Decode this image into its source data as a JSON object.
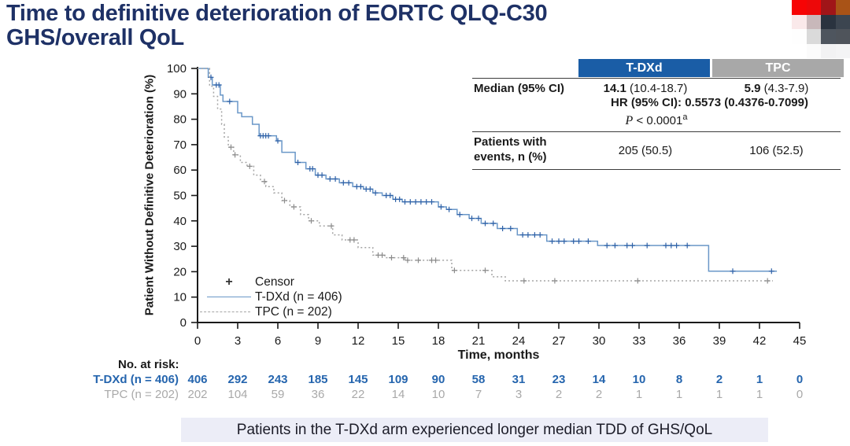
{
  "header": {
    "title": "Time to definitive deterioration of EORTC QLQ-C30\nGHS/overall QoL"
  },
  "logo": {
    "cells": [
      "#f70405",
      "#ed0809",
      "#a01518",
      "#a95317",
      "#fae9ea",
      "#c8b8ba",
      "#2a333f",
      "#3c4550",
      "#fefefe",
      "#dadada",
      "#4e555e",
      "#4f545b",
      "#ffffff",
      "#fbfbfb",
      "#f2f2f3",
      "#f4f4f5"
    ]
  },
  "chart_data": {
    "type": "line",
    "subtype": "kaplan-meier-step",
    "xlabel": "Time, months",
    "ylabel": "Patient Without Definitive Deterioration (%)",
    "xlim": [
      0,
      45
    ],
    "ylim": [
      0,
      100
    ],
    "x_ticks": [
      0,
      3,
      6,
      9,
      12,
      15,
      18,
      21,
      24,
      27,
      30,
      33,
      36,
      39,
      42,
      45
    ],
    "y_ticks": [
      0,
      10,
      20,
      30,
      40,
      50,
      60,
      70,
      80,
      90,
      100
    ],
    "grid": false,
    "legend_position": "inside-bottom-left",
    "censor_label": "Censor",
    "series": [
      {
        "name": "T-DXd (n = 406)",
        "style": "solid",
        "color": "#6a97c8",
        "censor_color": "#2f62a8",
        "points": [
          [
            0,
            100
          ],
          [
            0.8,
            96.5
          ],
          [
            1.1,
            93.5
          ],
          [
            1.7,
            89.5
          ],
          [
            1.9,
            87
          ],
          [
            3.0,
            82.5
          ],
          [
            3.3,
            81
          ],
          [
            4.1,
            78
          ],
          [
            4.6,
            73.5
          ],
          [
            5.9,
            71.5
          ],
          [
            6.3,
            67
          ],
          [
            7.3,
            63
          ],
          [
            8.1,
            60.5
          ],
          [
            8.8,
            58
          ],
          [
            9.6,
            56.5
          ],
          [
            10.6,
            55
          ],
          [
            11.6,
            53.5
          ],
          [
            12.4,
            52.5
          ],
          [
            13.1,
            51
          ],
          [
            13.8,
            50
          ],
          [
            14.6,
            48.5
          ],
          [
            15.3,
            47.5
          ],
          [
            18.0,
            45.5
          ],
          [
            18.6,
            44.5
          ],
          [
            19.4,
            42.5
          ],
          [
            20.3,
            41
          ],
          [
            21.2,
            39
          ],
          [
            22.4,
            37
          ],
          [
            23.9,
            34.5
          ],
          [
            26.1,
            32
          ],
          [
            29.9,
            30.3
          ],
          [
            38.2,
            20.2
          ],
          [
            43.3,
            20.2
          ]
        ],
        "censors": [
          1.0,
          1.4,
          1.6,
          2.4,
          4.7,
          4.9,
          5.1,
          5.3,
          6.0,
          7.5,
          8.4,
          8.6,
          9.0,
          9.3,
          9.9,
          10.3,
          10.9,
          11.3,
          11.9,
          12.2,
          12.6,
          12.9,
          13.3,
          14.1,
          14.4,
          14.8,
          15.1,
          15.5,
          15.9,
          16.3,
          16.7,
          17.1,
          17.5,
          18.2,
          18.8,
          19.6,
          20.5,
          21.0,
          21.5,
          22.1,
          22.8,
          23.4,
          24.3,
          24.7,
          25.2,
          25.6,
          26.5,
          27.0,
          27.4,
          28.1,
          28.5,
          29.2,
          30.6,
          31.2,
          32.1,
          32.5,
          33.6,
          35.0,
          35.4,
          35.8,
          36.6,
          40.0,
          42.9
        ]
      },
      {
        "name": "TPC (n = 202)",
        "style": "dashed",
        "color": "#a5a5a5",
        "censor_color": "#8c8c8c",
        "points": [
          [
            0,
            100
          ],
          [
            0.9,
            93
          ],
          [
            1.2,
            89
          ],
          [
            1.5,
            84
          ],
          [
            1.8,
            78
          ],
          [
            2.0,
            73
          ],
          [
            2.3,
            69
          ],
          [
            2.7,
            66
          ],
          [
            3.2,
            63
          ],
          [
            3.7,
            61.5
          ],
          [
            4.2,
            58
          ],
          [
            4.7,
            55.5
          ],
          [
            5.1,
            53.5
          ],
          [
            5.7,
            51
          ],
          [
            6.3,
            48
          ],
          [
            6.9,
            45.5
          ],
          [
            7.7,
            42.5
          ],
          [
            8.3,
            40
          ],
          [
            9.1,
            38
          ],
          [
            10.1,
            34.5
          ],
          [
            10.8,
            32.5
          ],
          [
            12.0,
            29.5
          ],
          [
            13.1,
            26.5
          ],
          [
            14.0,
            25.5
          ],
          [
            15.5,
            24.5
          ],
          [
            19.0,
            20.5
          ],
          [
            22.0,
            18
          ],
          [
            23.0,
            16.4
          ],
          [
            43.0,
            16.4
          ]
        ],
        "censors": [
          2.5,
          2.8,
          3.9,
          5.0,
          6.5,
          7.2,
          8.5,
          10.0,
          11.4,
          11.7,
          13.5,
          13.8,
          14.5,
          15.4,
          15.7,
          16.5,
          17.5,
          17.8,
          19.2,
          21.5,
          24.4,
          26.7,
          32.9,
          42.6
        ]
      }
    ]
  },
  "stats_table": {
    "col_headers": [
      {
        "label": "T-DXd",
        "bg": "#1a5da6"
      },
      {
        "label": "TPC",
        "bg": "#a8a8a8"
      }
    ],
    "rows": {
      "median_label": "Median (95% CI)",
      "median_tdxd_value": "14.1",
      "median_tdxd_ci": " (10.4-18.7)",
      "median_tpc_value": "5.9",
      "median_tpc_ci": " (4.3-7.9)",
      "hr_line": "HR (95% CI): 0.5573 (0.4376-0.7099)",
      "p_label": "P",
      "p_value": " < 0.0001",
      "p_sup": "a",
      "events_label": "Patients with\nevents, n (%)",
      "events_tdxd": "205 (50.5)",
      "events_tpc": "106 (52.5)"
    }
  },
  "risk_table": {
    "title": "No. at risk:",
    "rows": [
      {
        "label": "T-DXd (n = 406)",
        "color": "#2565ae",
        "bold": true,
        "values": [
          406,
          292,
          243,
          185,
          145,
          109,
          90,
          58,
          31,
          23,
          14,
          10,
          8,
          2,
          1,
          0
        ]
      },
      {
        "label": "TPC (n = 202)",
        "color": "#a9a9a9",
        "bold": false,
        "values": [
          202,
          104,
          59,
          36,
          22,
          14,
          10,
          7,
          3,
          2,
          2,
          1,
          1,
          1,
          1,
          0
        ]
      }
    ]
  },
  "banner": {
    "text": "Patients in the T-DXd arm experienced longer median TDD of GHS/QoL"
  }
}
